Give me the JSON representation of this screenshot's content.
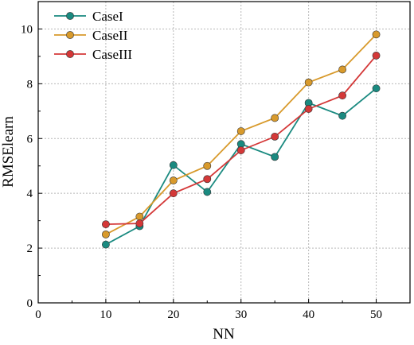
{
  "chart_data": {
    "type": "line",
    "xlabel": "NN",
    "ylabel": "RMSElearn",
    "xlim": [
      0,
      55
    ],
    "ylim": [
      0,
      11
    ],
    "xticks": [
      0,
      10,
      20,
      30,
      40,
      50
    ],
    "yticks": [
      0,
      2,
      4,
      6,
      8,
      10
    ],
    "grid": true,
    "legend_position": "top-left",
    "x": [
      10,
      15,
      20,
      25,
      30,
      35,
      40,
      45,
      50
    ],
    "series": [
      {
        "name": "CaseI",
        "color": "#1a8a80",
        "values": [
          2.13,
          2.8,
          5.03,
          4.05,
          5.8,
          5.33,
          7.3,
          6.83,
          7.83
        ]
      },
      {
        "name": "CaseII",
        "color": "#d89a2c",
        "values": [
          2.5,
          3.15,
          4.47,
          5.0,
          6.27,
          6.75,
          8.05,
          8.52,
          9.8
        ]
      },
      {
        "name": "CaseIII",
        "color": "#d43838",
        "values": [
          2.87,
          2.9,
          4.0,
          4.52,
          5.57,
          6.07,
          7.08,
          7.57,
          9.03
        ]
      }
    ]
  }
}
